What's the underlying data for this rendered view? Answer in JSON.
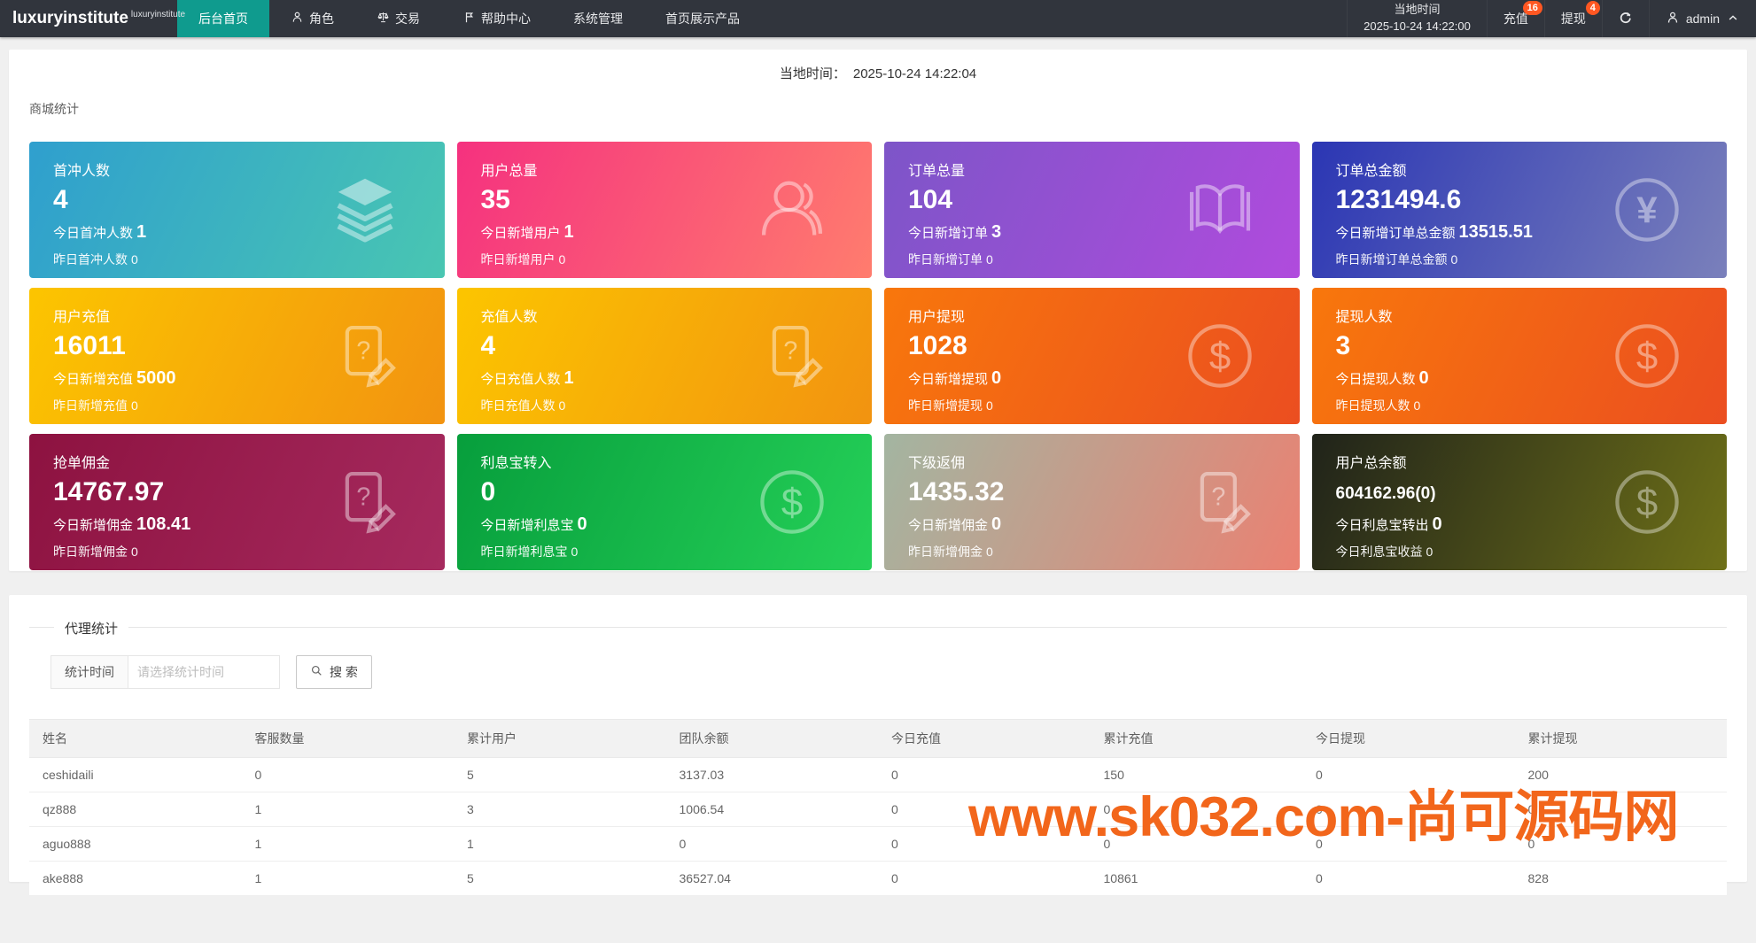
{
  "navbar": {
    "logo": "luxuryinstitute",
    "logo_sup": "luxuryinstitute",
    "menu": [
      {
        "label": "后台首页",
        "icon": "",
        "active": true
      },
      {
        "label": "角色",
        "icon": "user-icon",
        "active": false
      },
      {
        "label": "交易",
        "icon": "scales-icon",
        "active": false
      },
      {
        "label": "帮助中心",
        "icon": "flag-icon",
        "active": false
      },
      {
        "label": "系统管理",
        "icon": "",
        "active": false
      },
      {
        "label": "首页展示产品",
        "icon": "",
        "active": false
      }
    ],
    "local_time_label": "当地时间",
    "local_time_value": "2025-10-24 14:22:00",
    "recharge": {
      "label": "充值",
      "badge": "16"
    },
    "withdraw": {
      "label": "提现",
      "badge": "4"
    },
    "user": "admin"
  },
  "overview": {
    "time_label": "当地时间：",
    "time_value": "2025-10-24 14:22:04",
    "section_title": "商城统计",
    "cards": [
      {
        "title": "首冲人数",
        "value": "4",
        "today_label": "今日首冲人数",
        "today_value": "1",
        "yesterday_label": "昨日首冲人数",
        "yesterday_value": "0",
        "icon": "layers-icon",
        "gradient": [
          "#2f9fce",
          "#49c6b2"
        ],
        "small_value": false
      },
      {
        "title": "用户总量",
        "value": "35",
        "today_label": "今日新增用户",
        "today_value": "1",
        "yesterday_label": "昨日新增用户",
        "yesterday_value": "0",
        "icon": "users-icon",
        "gradient": [
          "#f5317f",
          "#ff7c6e"
        ],
        "small_value": false
      },
      {
        "title": "订单总量",
        "value": "104",
        "today_label": "今日新增订单",
        "today_value": "3",
        "yesterday_label": "昨日新增订单",
        "yesterday_value": "0",
        "icon": "book-icon",
        "gradient": [
          "#7d55c8",
          "#b04bdd"
        ],
        "small_value": false
      },
      {
        "title": "订单总金额",
        "value": "1231494.6",
        "today_label": "今日新增订单总金额",
        "today_value": "13515.51",
        "yesterday_label": "昨日新增订单总金额",
        "yesterday_value": "0",
        "icon": "yen-circle-icon",
        "gradient": [
          "#2b36b4",
          "#7a80bb"
        ],
        "small_value": false
      },
      {
        "title": "用户充值",
        "value": "16011",
        "today_label": "今日新增充值",
        "today_value": "5000",
        "yesterday_label": "昨日新增充值",
        "yesterday_value": "0",
        "icon": "edit-question-icon",
        "gradient": [
          "#fcc500",
          "#f29310"
        ],
        "small_value": false
      },
      {
        "title": "充值人数",
        "value": "4",
        "today_label": "今日充值人数",
        "today_value": "1",
        "yesterday_label": "昨日充值人数",
        "yesterday_value": "0",
        "icon": "edit-question-icon",
        "gradient": [
          "#fcc500",
          "#f29310"
        ],
        "small_value": false
      },
      {
        "title": "用户提现",
        "value": "1028",
        "today_label": "今日新增提现",
        "today_value": "0",
        "yesterday_label": "昨日新增提现",
        "yesterday_value": "0",
        "icon": "dollar-circle-icon",
        "gradient": [
          "#f8770c",
          "#eb4e20"
        ],
        "small_value": false
      },
      {
        "title": "提现人数",
        "value": "3",
        "today_label": "今日提现人数",
        "today_value": "0",
        "yesterday_label": "昨日提现人数",
        "yesterday_value": "0",
        "icon": "dollar-circle-icon",
        "gradient": [
          "#f8770c",
          "#eb4e20"
        ],
        "small_value": false
      },
      {
        "title": "抢单佣金",
        "value": "14767.97",
        "today_label": "今日新增佣金",
        "today_value": "108.41",
        "yesterday_label": "昨日新增佣金",
        "yesterday_value": "0",
        "icon": "edit-question-icon",
        "gradient": [
          "#8d1240",
          "#a62a5e"
        ],
        "small_value": false
      },
      {
        "title": "利息宝转入",
        "value": "0",
        "today_label": "今日新增利息宝",
        "today_value": "0",
        "yesterday_label": "昨日新增利息宝",
        "yesterday_value": "0",
        "icon": "dollar-circle-icon",
        "gradient": [
          "#079e3c",
          "#25d058"
        ],
        "small_value": false
      },
      {
        "title": "下级返佣",
        "value": "1435.32",
        "today_label": "今日新增佣金",
        "today_value": "0",
        "yesterday_label": "昨日新增佣金",
        "yesterday_value": "0",
        "icon": "edit-question-icon",
        "gradient": [
          "#a3b5a1",
          "#ea8172"
        ],
        "small_value": false
      },
      {
        "title": "用户总余额",
        "value": "604162.96(0)",
        "today_label": "今日利息宝转出",
        "today_value": "0",
        "yesterday_label": "今日利息宝收益",
        "yesterday_value": "0",
        "icon": "dollar-circle-icon",
        "gradient": [
          "#20231a",
          "#6e7018"
        ],
        "small_value": true
      }
    ]
  },
  "agent": {
    "section_title": "代理统计",
    "filter_label": "统计时间",
    "filter_placeholder": "请选择统计时间",
    "search_label": "搜 索",
    "table": {
      "headers": [
        "姓名",
        "客服数量",
        "累计用户",
        "团队余额",
        "今日充值",
        "累计充值",
        "今日提现",
        "累计提现"
      ],
      "rows": [
        [
          "ceshidaili",
          "0",
          "5",
          "3137.03",
          "0",
          "150",
          "0",
          "200"
        ],
        [
          "qz888",
          "1",
          "3",
          "1006.54",
          "0",
          "0",
          "0",
          "0"
        ],
        [
          "aguo888",
          "1",
          "1",
          "0",
          "0",
          "0",
          "0",
          "0"
        ],
        [
          "ake888",
          "1",
          "5",
          "36527.04",
          "0",
          "10861",
          "0",
          "828"
        ]
      ]
    }
  },
  "watermark": "www.sk032.com-尚可源码网",
  "colors": {
    "navbar_bg": "#31353d",
    "active_menu": "#0f9b8e",
    "badge": "#ff5722",
    "watermark": "#f2661b"
  }
}
